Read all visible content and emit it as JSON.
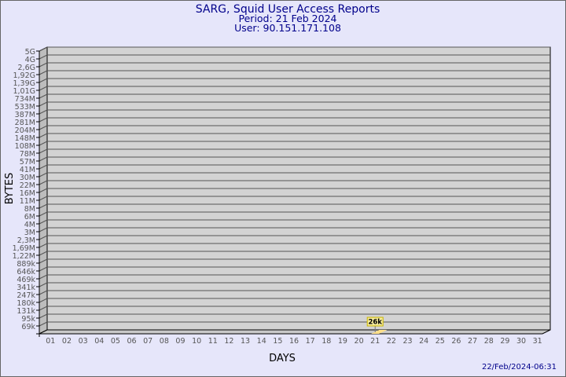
{
  "header": {
    "title": "SARG, Squid User Access Reports",
    "period": "Period: 21 Feb 2024",
    "user": "User: 90.151.171.108"
  },
  "footer": {
    "timestamp": "22/Feb/2024-06:31"
  },
  "chart_data": {
    "type": "bar",
    "title": "SARG, Squid User Access Reports",
    "xlabel": "DAYS",
    "ylabel": "BYTES",
    "y_scale": "log",
    "grid": true,
    "y_ticks": [
      "5G",
      "4G",
      "2,6G",
      "1,92G",
      "1,39G",
      "1,01G",
      "734M",
      "533M",
      "387M",
      "281M",
      "204M",
      "148M",
      "108M",
      "78M",
      "57M",
      "41M",
      "30M",
      "22M",
      "16M",
      "11M",
      "8M",
      "6M",
      "4M",
      "3M",
      "2,3M",
      "1,69M",
      "1,22M",
      "889k",
      "646k",
      "469k",
      "341k",
      "247k",
      "180k",
      "131k",
      "95k",
      "69k"
    ],
    "categories": [
      "01",
      "02",
      "03",
      "04",
      "05",
      "06",
      "07",
      "08",
      "09",
      "10",
      "11",
      "12",
      "13",
      "14",
      "15",
      "16",
      "17",
      "18",
      "19",
      "20",
      "21",
      "22",
      "23",
      "24",
      "25",
      "26",
      "27",
      "28",
      "29",
      "30",
      "31"
    ],
    "values": [
      null,
      null,
      null,
      null,
      null,
      null,
      null,
      null,
      null,
      null,
      null,
      null,
      null,
      null,
      null,
      null,
      null,
      null,
      null,
      null,
      26000,
      null,
      null,
      null,
      null,
      null,
      null,
      null,
      null,
      null,
      null
    ],
    "data_labels": {
      "21": "26k"
    },
    "colors": {
      "plot": "#d3d3d3",
      "bar": "#ffe08a",
      "label_bg": "#f5eb9a",
      "title": "#00008b",
      "text": "#555555"
    }
  }
}
